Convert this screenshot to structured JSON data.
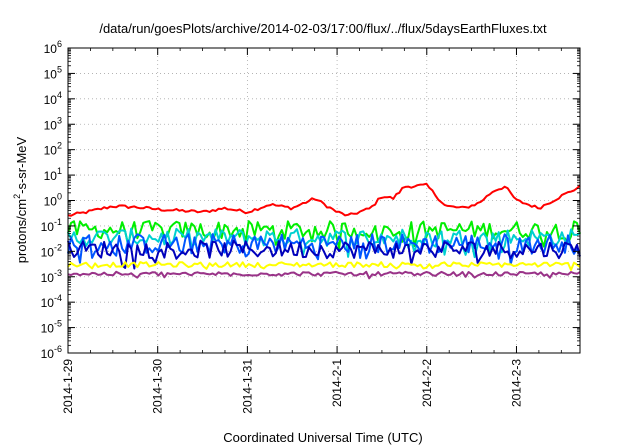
{
  "chart_data": {
    "type": "line",
    "title": "/data/run/goesPlots/archive/2014-02-03/17:00/flux/../flux/5daysEarthFluxes.txt",
    "xlabel": "Coordinated Universal Time (UTC)",
    "ylabel": {
      "prefix": "protons/cm",
      "superscript": "2",
      "suffix": "-s-sr-MeV"
    },
    "y_scale": "log",
    "ylim": [
      1e-06,
      1000000
    ],
    "y_ticks": [
      {
        "value": 1e-06,
        "base": "10",
        "exp": "-6"
      },
      {
        "value": 1e-05,
        "base": "10",
        "exp": "-5"
      },
      {
        "value": 0.0001,
        "base": "10",
        "exp": "-4"
      },
      {
        "value": 0.001,
        "base": "10",
        "exp": "-3"
      },
      {
        "value": 0.01,
        "base": "10",
        "exp": "-2"
      },
      {
        "value": 0.1,
        "base": "10",
        "exp": "-1"
      },
      {
        "value": 1,
        "base": "10",
        "exp": "0"
      },
      {
        "value": 10,
        "base": "10",
        "exp": "1"
      },
      {
        "value": 100,
        "base": "10",
        "exp": "2"
      },
      {
        "value": 1000,
        "base": "10",
        "exp": "3"
      },
      {
        "value": 10000,
        "base": "10",
        "exp": "4"
      },
      {
        "value": 100000,
        "base": "10",
        "exp": "5"
      },
      {
        "value": 1000000,
        "base": "10",
        "exp": "6"
      }
    ],
    "xlim": [
      "2014-01-29",
      "2014-02-03T17:00"
    ],
    "x_ticks": [
      "2014-1-29",
      "2014-1-30",
      "2014-1-31",
      "2014-2-1",
      "2014-2-2",
      "2014-2-3"
    ],
    "grid": true,
    "series": [
      {
        "color": "#ff0000",
        "width": 2,
        "x": [
          "2014-01-29T00:00",
          "2014-01-29T05:00",
          "2014-01-29T12:00",
          "2014-01-29T18:00",
          "2014-01-30T00:00",
          "2014-01-30T06:00",
          "2014-01-30T12:00",
          "2014-01-30T18:00",
          "2014-01-31T00:00",
          "2014-01-31T06:00",
          "2014-01-31T12:00",
          "2014-01-31T18:00",
          "2014-02-01T00:00",
          "2014-02-01T03:00",
          "2014-02-01T09:00",
          "2014-02-01T12:00",
          "2014-02-01T15:00",
          "2014-02-01T18:00",
          "2014-02-02T00:00",
          "2014-02-02T05:00",
          "2014-02-02T10:00",
          "2014-02-02T14:00",
          "2014-02-02T18:00",
          "2014-02-02T21:00",
          "2014-02-03T00:00",
          "2014-02-03T06:00",
          "2014-02-03T12:00",
          "2014-02-03T17:00"
        ],
        "values": [
          0.25,
          0.35,
          0.6,
          0.55,
          0.45,
          0.4,
          0.35,
          0.5,
          0.35,
          0.7,
          0.5,
          1.2,
          0.35,
          0.25,
          0.5,
          1.5,
          1.2,
          3.5,
          4.0,
          0.6,
          0.5,
          0.8,
          2.5,
          3.5,
          1.0,
          0.5,
          1.5,
          3.5
        ]
      },
      {
        "color": "#00ee00",
        "width": 2,
        "level": 0.07,
        "spread": 0.35
      },
      {
        "color": "#00d0d0",
        "width": 2,
        "level": 0.035,
        "spread": 0.35
      },
      {
        "color": "#0055ff",
        "width": 2,
        "level": 0.02,
        "spread": 0.4
      },
      {
        "color": "#0000bb",
        "width": 2,
        "level": 0.012,
        "spread": 0.35
      },
      {
        "color": "#ffff00",
        "width": 2,
        "level": 0.003,
        "spread": 0.1
      },
      {
        "color": "#993388",
        "width": 2,
        "level": 0.0013,
        "spread": 0.08
      }
    ]
  }
}
